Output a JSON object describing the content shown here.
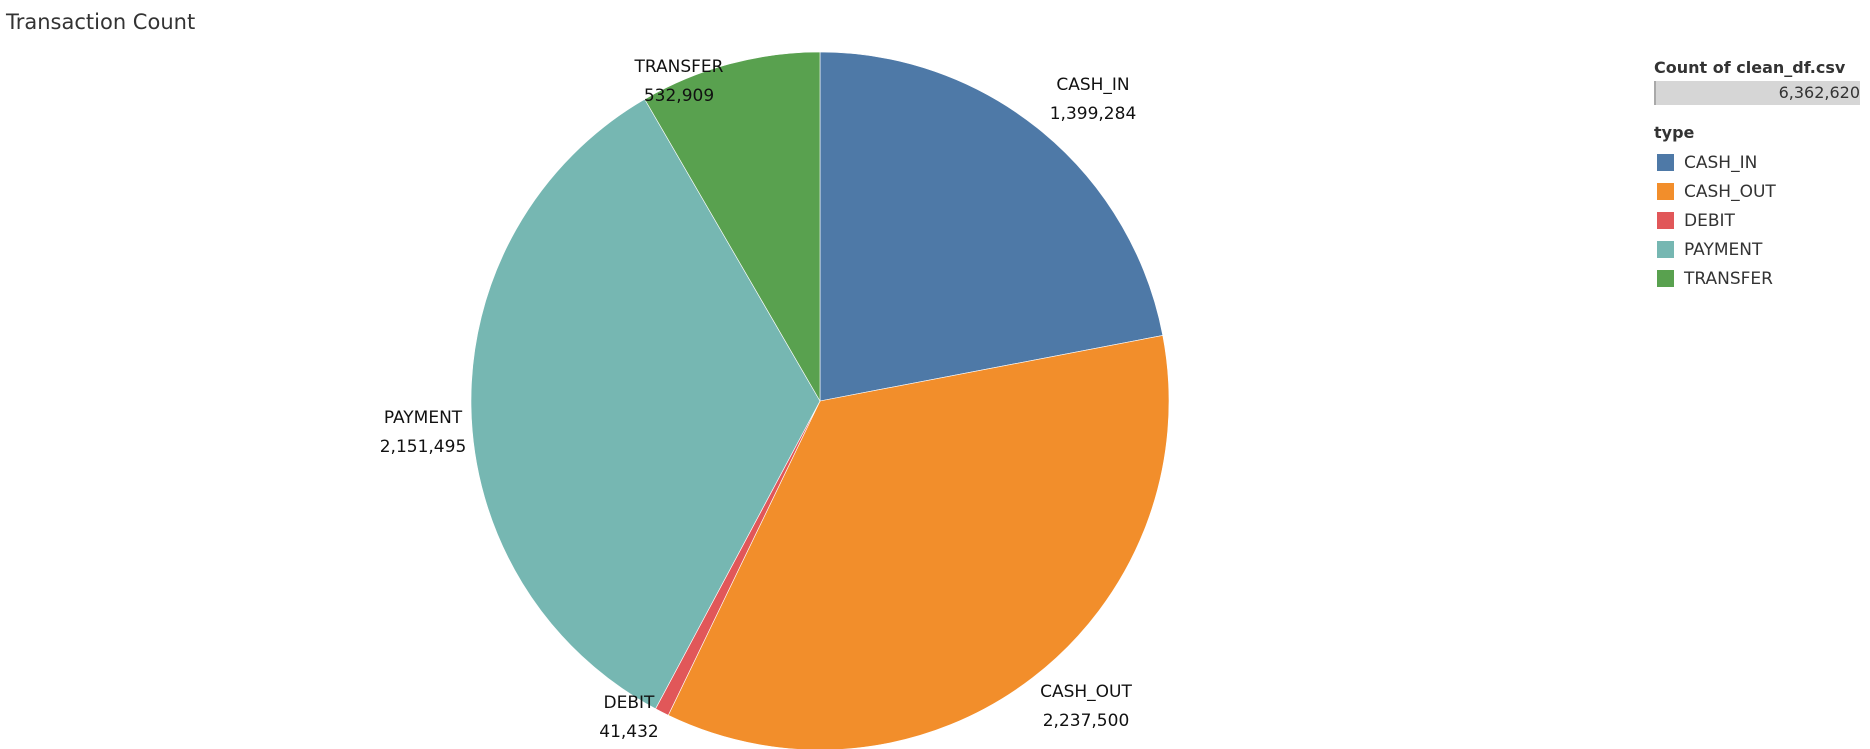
{
  "title": "Transaction Count",
  "legend": {
    "count_heading": "Count of clean_df.csv",
    "count_value": "6,362,620",
    "type_heading": "type",
    "items": [
      {
        "label": "CASH_IN",
        "color": "#4e79a7"
      },
      {
        "label": "CASH_OUT",
        "color": "#f28e2b"
      },
      {
        "label": "DEBIT",
        "color": "#e15759"
      },
      {
        "label": "PAYMENT",
        "color": "#76b7b2"
      },
      {
        "label": "TRANSFER",
        "color": "#59a14f"
      }
    ]
  },
  "chart_data": {
    "type": "pie",
    "title": "Transaction Count",
    "total": 6362620,
    "slices": [
      {
        "category": "CASH_IN",
        "value": 1399284,
        "value_label": "1,399,284",
        "color": "#4e79a7"
      },
      {
        "category": "CASH_OUT",
        "value": 2237500,
        "value_label": "2,237,500",
        "color": "#f28e2b"
      },
      {
        "category": "DEBIT",
        "value": 41432,
        "value_label": "41,432",
        "color": "#e15759"
      },
      {
        "category": "PAYMENT",
        "value": 2151495,
        "value_label": "2,151,495",
        "color": "#76b7b2"
      },
      {
        "category": "TRANSFER",
        "value": 532909,
        "value_label": "532,909",
        "color": "#59a14f"
      }
    ],
    "start_angle": "12 o'clock",
    "direction": "clockwise",
    "legend_position": "right"
  }
}
